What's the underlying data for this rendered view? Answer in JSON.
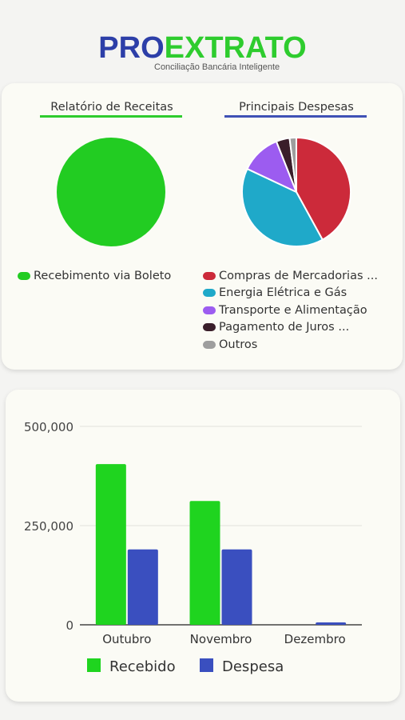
{
  "logo": {
    "brand_part1": "PRO",
    "brand_part2": "EXTRATO",
    "tagline": "Conciliação Bancária Inteligente",
    "colors": {
      "pro": "#2d3fa8",
      "extrato": "#2ecc2e"
    }
  },
  "revenue_report": {
    "title": "Relatório de Receitas",
    "underline_color": "#2ecc2e",
    "legend": [
      {
        "label": "Recebimento via Boleto",
        "color": "#22cc22"
      }
    ]
  },
  "expenses_report": {
    "title": "Principais Despesas",
    "underline_color": "#3f51b5",
    "legend": [
      {
        "label": "Compras de Mercadorias ...",
        "color": "#cc2a3a"
      },
      {
        "label": "Energia Elétrica e Gás",
        "color": "#1fa9c9"
      },
      {
        "label": "Transporte e Alimentação",
        "color": "#9c5cf0"
      },
      {
        "label": "Pagamento de Juros ...",
        "color": "#3a1e2a"
      },
      {
        "label": "Outros",
        "color": "#9e9e9e"
      }
    ]
  },
  "chart_data": [
    {
      "type": "pie",
      "labels": [
        "Recebimento via Boleto"
      ],
      "values": [
        100
      ],
      "colors": [
        "#22cc22"
      ]
    },
    {
      "type": "pie",
      "labels": [
        "Compras de Mercadorias ...",
        "Energia Elétrica e Gás",
        "Transporte e Alimentação",
        "Pagamento de Juros ...",
        "Outros"
      ],
      "values": [
        42,
        40,
        12,
        4,
        2
      ],
      "colors": [
        "#cc2a3a",
        "#1fa9c9",
        "#9c5cf0",
        "#3a1e2a",
        "#9e9e9e"
      ]
    },
    {
      "type": "bar",
      "categories": [
        "Outubro",
        "Novembro",
        "Dezembro"
      ],
      "series": [
        {
          "name": "Recebido",
          "values": [
            405000,
            312000,
            0
          ],
          "color": "#1fd41f"
        },
        {
          "name": "Despesa",
          "values": [
            190000,
            190000,
            6000
          ],
          "color": "#3a4fbf"
        }
      ],
      "yticks": [
        "0",
        "250,000",
        "500,000"
      ],
      "ylim": [
        0,
        500000
      ],
      "grid": true,
      "legend_position": "bottom"
    }
  ]
}
